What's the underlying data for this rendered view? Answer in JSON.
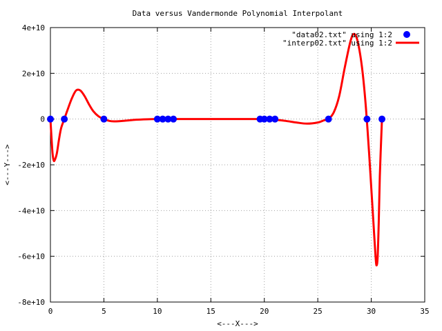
{
  "chart_data": {
    "type": "line",
    "title": "Data versus Vandermonde Polynomial Interpolant",
    "xlabel": "<---X--->",
    "ylabel": "<---Y--->",
    "xlim": [
      0,
      35
    ],
    "ylim": [
      -80000000000,
      40000000000
    ],
    "grid": true,
    "legend_position": "top-right",
    "x_ticks": [
      {
        "value": 0,
        "label": "0"
      },
      {
        "value": 5,
        "label": "5"
      },
      {
        "value": 10,
        "label": "10"
      },
      {
        "value": 15,
        "label": "15"
      },
      {
        "value": 20,
        "label": "20"
      },
      {
        "value": 25,
        "label": "25"
      },
      {
        "value": 30,
        "label": "30"
      },
      {
        "value": 35,
        "label": "35"
      }
    ],
    "y_ticks": [
      {
        "value": 40000000000,
        "label": "4e+10"
      },
      {
        "value": 20000000000,
        "label": "2e+10"
      },
      {
        "value": 0,
        "label": "0"
      },
      {
        "value": -20000000000,
        "label": "-2e+10"
      },
      {
        "value": -40000000000,
        "label": "-4e+10"
      },
      {
        "value": -60000000000,
        "label": "-6e+10"
      },
      {
        "value": -80000000000,
        "label": "-8e+10"
      }
    ],
    "series": [
      {
        "name": "\"data02.txt\" using 1:2",
        "kind": "points",
        "color": "#0000ff",
        "x": [
          0,
          1.3,
          5,
          10,
          10.5,
          11,
          11.5,
          19.6,
          20,
          20.5,
          21,
          26,
          29.6,
          31
        ],
        "y": [
          0,
          0,
          0,
          0,
          0,
          0,
          0,
          0,
          0,
          0,
          0,
          0,
          0,
          0
        ]
      },
      {
        "name": "\"interp02.txt\" using 1:2",
        "kind": "line",
        "color": "#ff0000",
        "x": [
          0,
          0.1,
          0.2,
          0.3,
          0.4,
          0.6,
          0.8,
          1.0,
          1.3,
          1.6,
          2.0,
          2.4,
          2.8,
          3.2,
          3.6,
          4.0,
          4.5,
          5.0,
          5.5,
          6.0,
          7.0,
          8.0,
          9.0,
          10.0,
          11.0,
          12.0,
          14.0,
          16.0,
          18.0,
          19.6,
          20.5,
          21.0,
          22.0,
          23.0,
          24.0,
          25.0,
          25.6,
          26.0,
          26.5,
          27.0,
          27.5,
          28.0,
          28.3,
          28.6,
          28.9,
          29.2,
          29.5,
          29.8,
          30.0,
          30.2,
          30.4,
          30.5,
          30.6,
          30.7,
          30.8,
          31.0
        ],
        "y": [
          0,
          -8000000000,
          -15000000000,
          -18000000000,
          -18000000000,
          -15000000000,
          -9000000000,
          -4000000000,
          0,
          4000000000,
          9000000000,
          12500000000,
          12500000000,
          10000000000,
          6500000000,
          3500000000,
          1200000000,
          0,
          -800000000,
          -1000000000,
          -700000000,
          -300000000,
          -100000000,
          0,
          0,
          0,
          0,
          0,
          0,
          0,
          -100000000,
          -300000000,
          -800000000,
          -1500000000,
          -2000000000,
          -1500000000,
          -500000000,
          0,
          3000000000,
          10000000000,
          22000000000,
          33000000000,
          37000000000,
          36000000000,
          30000000000,
          20000000000,
          5000000000,
          -15000000000,
          -30000000000,
          -45000000000,
          -60000000000,
          -64000000000,
          -60000000000,
          -45000000000,
          -25000000000,
          0
        ]
      }
    ]
  }
}
